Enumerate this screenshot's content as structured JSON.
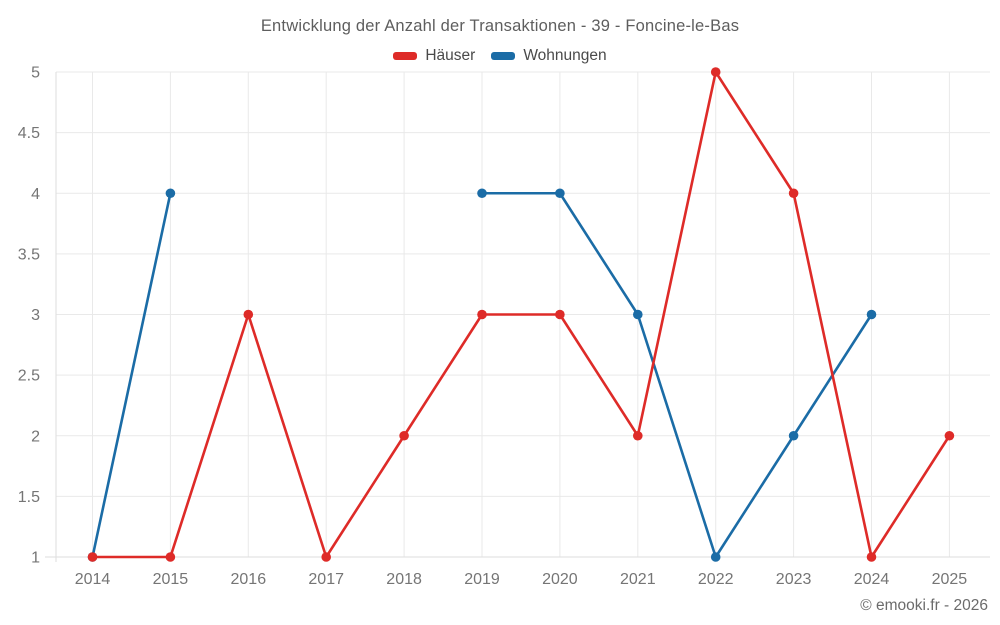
{
  "page": {
    "title": "Entwicklung der Anzahl der Transaktionen - 39 - Foncine-le-Bas",
    "footer": "© emooki.fr - 2026"
  },
  "legend": {
    "items": [
      {
        "label": "Häuser",
        "color": "#de2b28"
      },
      {
        "label": "Wohnungen",
        "color": "#1b6ca6"
      }
    ]
  },
  "chart_data": {
    "type": "line",
    "title": "Entwicklung der Anzahl der Transaktionen - 39 - Foncine-le-Bas",
    "categories": [
      2014,
      2015,
      2016,
      2017,
      2018,
      2019,
      2020,
      2021,
      2022,
      2023,
      2024,
      2025
    ],
    "series": [
      {
        "name": "Häuser",
        "color": "#de2b28",
        "values": [
          1,
          1,
          3,
          1,
          2,
          3,
          3,
          2,
          5,
          4,
          1,
          2
        ]
      },
      {
        "name": "Wohnungen",
        "color": "#1b6ca6",
        "values": [
          1,
          4,
          null,
          null,
          null,
          4,
          4,
          3,
          1,
          2,
          3,
          null
        ]
      }
    ],
    "ylim": [
      1,
      5
    ],
    "ytick_step": 0.5,
    "yticks": [
      1,
      1.5,
      2,
      2.5,
      3,
      3.5,
      4,
      4.5,
      5
    ],
    "xlabel": "",
    "ylabel": "",
    "grid": true,
    "legend_position": "top"
  },
  "colors": {
    "grid": "#e9e9e9",
    "axis": "#dedede",
    "title_text": "#5e5e5e",
    "tick_text": "#757575",
    "footer_text": "#6b6b6b"
  }
}
